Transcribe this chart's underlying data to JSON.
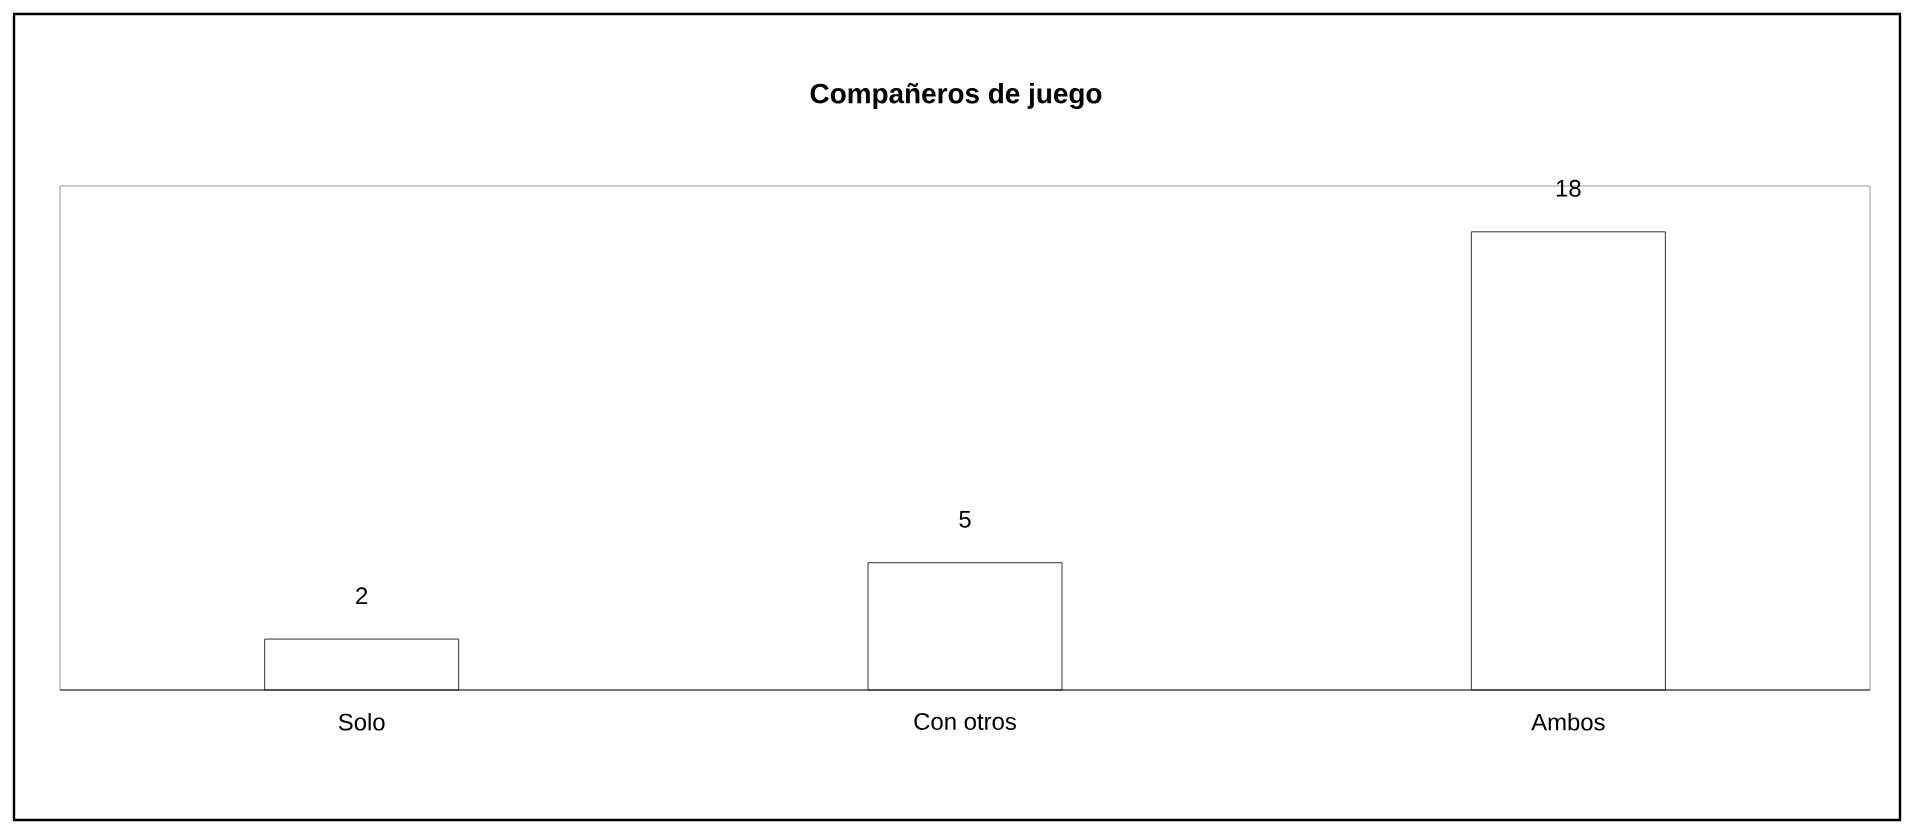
{
  "chart_data": {
    "type": "bar",
    "title": "Compañeros de juego",
    "categories": [
      "Solo",
      "Con otros",
      "Ambos"
    ],
    "values": [
      2,
      5,
      18
    ],
    "color": "#000000",
    "data_labels": true
  }
}
